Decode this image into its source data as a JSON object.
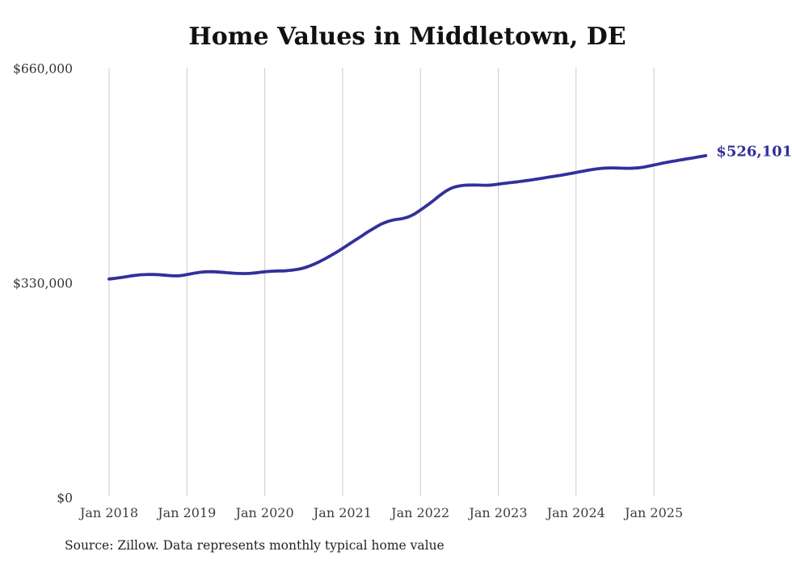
{
  "title": "Home Values in Middletown, DE",
  "source_note": "Source: Zillow. Data represents monthly typical home value",
  "colors": {
    "line": "#32309d",
    "end_label": "#32309d",
    "grid": "#cccccc",
    "title": "#111111",
    "y_tick_label": "#333333",
    "x_tick_label": "#3d3d3d",
    "source_note": "#222222",
    "background": "#ffffff"
  },
  "chart_data": {
    "type": "line",
    "title": "Home Values in Middletown, DE",
    "xlabel": "",
    "ylabel": "",
    "ylim": [
      0,
      660000
    ],
    "grid": "vertical-only",
    "legend": "none",
    "frequency": "monthly",
    "start_month": "Jan 2018",
    "end_month": "Sep 2025",
    "x_tick_labels": [
      "Jan 2018",
      "Jan 2019",
      "Jan 2020",
      "Jan 2021",
      "Jan 2022",
      "Jan 2023",
      "Jan 2024",
      "Jan 2025"
    ],
    "x_tick_month_indices": [
      0,
      12,
      24,
      36,
      48,
      60,
      72,
      84
    ],
    "y_ticks": [
      {
        "label": "$0",
        "value": 0
      },
      {
        "label": "$330,000",
        "value": 330000
      },
      {
        "label": "$660,000",
        "value": 660000
      }
    ],
    "last_value": 526101,
    "last_value_label": "$526,101",
    "series_name": "Typical home value",
    "months": [
      "Jan 2018",
      "Feb 2018",
      "Mar 2018",
      "Apr 2018",
      "May 2018",
      "Jun 2018",
      "Jul 2018",
      "Aug 2018",
      "Sep 2018",
      "Oct 2018",
      "Nov 2018",
      "Dec 2018",
      "Jan 2019",
      "Feb 2019",
      "Mar 2019",
      "Apr 2019",
      "May 2019",
      "Jun 2019",
      "Jul 2019",
      "Aug 2019",
      "Sep 2019",
      "Oct 2019",
      "Nov 2019",
      "Dec 2019",
      "Jan 2020",
      "Feb 2020",
      "Mar 2020",
      "Apr 2020",
      "May 2020",
      "Jun 2020",
      "Jul 2020",
      "Aug 2020",
      "Sep 2020",
      "Oct 2020",
      "Nov 2020",
      "Dec 2020",
      "Jan 2021",
      "Feb 2021",
      "Mar 2021",
      "Apr 2021",
      "May 2021",
      "Jun 2021",
      "Jul 2021",
      "Aug 2021",
      "Sep 2021",
      "Oct 2021",
      "Nov 2021",
      "Dec 2021",
      "Jan 2022",
      "Feb 2022",
      "Mar 2022",
      "Apr 2022",
      "May 2022",
      "Jun 2022",
      "Jul 2022",
      "Aug 2022",
      "Sep 2022",
      "Oct 2022",
      "Nov 2022",
      "Dec 2022",
      "Jan 2023",
      "Feb 2023",
      "Mar 2023",
      "Apr 2023",
      "May 2023",
      "Jun 2023",
      "Jul 2023",
      "Aug 2023",
      "Sep 2023",
      "Oct 2023",
      "Nov 2023",
      "Dec 2023",
      "Jan 2024",
      "Feb 2024",
      "Mar 2024",
      "Apr 2024",
      "May 2024",
      "Jun 2024",
      "Jul 2024",
      "Aug 2024",
      "Sep 2024",
      "Oct 2024",
      "Nov 2024",
      "Dec 2024",
      "Jan 2025",
      "Feb 2025",
      "Mar 2025",
      "Apr 2025",
      "May 2025",
      "Jun 2025",
      "Jul 2025",
      "Aug 2025",
      "Sep 2025"
    ],
    "values": [
      336500,
      337600,
      339000,
      340600,
      342000,
      343000,
      343500,
      343400,
      342800,
      342000,
      341400,
      341600,
      343300,
      345200,
      346700,
      347600,
      347700,
      347100,
      346300,
      345500,
      345000,
      344900,
      345400,
      346400,
      347600,
      348300,
      348800,
      349000,
      349800,
      351200,
      353500,
      356800,
      361000,
      366000,
      371500,
      377300,
      383500,
      390000,
      396500,
      403000,
      409500,
      415500,
      421000,
      425000,
      427500,
      429000,
      431500,
      436000,
      442500,
      449500,
      457000,
      465000,
      472000,
      477000,
      479500,
      480700,
      481000,
      480800,
      480600,
      481000,
      482300,
      483600,
      484800,
      486000,
      487300,
      488700,
      490200,
      491800,
      493400,
      495000,
      496600,
      498400,
      500300,
      502200,
      504000,
      505500,
      506600,
      507200,
      507200,
      506900,
      506700,
      507000,
      507900,
      509600,
      511700,
      513800,
      515800,
      517600,
      519300,
      521000,
      522700,
      524400,
      526101
    ]
  }
}
